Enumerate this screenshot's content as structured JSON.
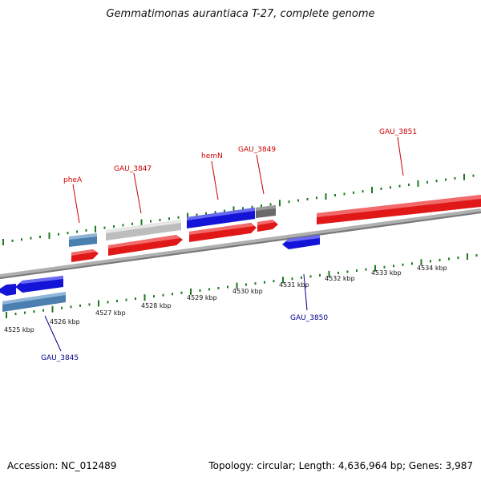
{
  "title": "Gemmatimonas aurantiaca T-27, complete genome",
  "footer": {
    "accession": "Accession: NC_012489",
    "summary": "Topology: circular; Length: 4,636,964 bp; Genes: 3,987"
  },
  "colors": {
    "cds_red": "#e01818",
    "blue": "#1414d8",
    "steel_blue": "#4a7fb0",
    "light_gray": "#bdbdbd",
    "dark_gray": "#6a6a6a",
    "backbone": "#8c8c8c",
    "tick_green": "#1e7a1e",
    "label_red": "#cc0000",
    "label_blue": "#00008b"
  },
  "position_ticks": [
    "4525 kbp",
    "4526 kbp",
    "4527 kbp",
    "4528 kbp",
    "4529 kbp",
    "4530 kbp",
    "4531 kbp",
    "4532 kbp",
    "4533 kbp",
    "4534 kbp"
  ],
  "genes": [
    {
      "name": "pheA",
      "color": "label_red"
    },
    {
      "name": "GAU_3847",
      "color": "label_red"
    },
    {
      "name": "hemN",
      "color": "label_red"
    },
    {
      "name": "GAU_3849",
      "color": "label_red"
    },
    {
      "name": "GAU_3851",
      "color": "label_red"
    },
    {
      "name": "GAU_3850",
      "color": "label_blue"
    },
    {
      "name": "GAU_3845",
      "color": "label_blue"
    }
  ]
}
